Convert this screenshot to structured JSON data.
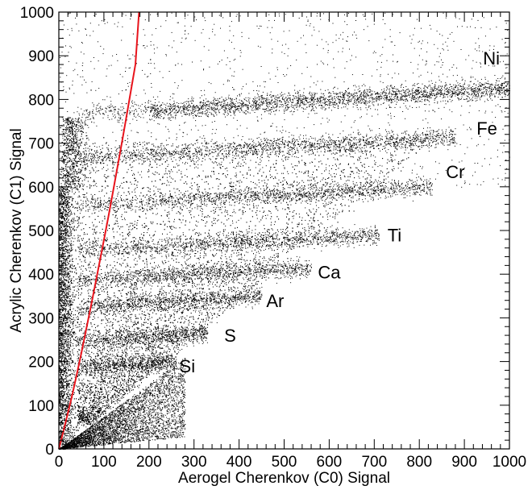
{
  "chart_data": {
    "type": "scatter",
    "title": "",
    "xlabel": "Aerogel Cherenkov (C0) Signal",
    "ylabel": "Acrylic Cherenkov (C1) Signal",
    "xlim": [
      0,
      1000
    ],
    "ylim": [
      0,
      1000
    ],
    "x_ticks": [
      0,
      100,
      200,
      300,
      400,
      500,
      600,
      700,
      800,
      900,
      1000
    ],
    "y_ticks": [
      0,
      100,
      200,
      300,
      400,
      500,
      600,
      700,
      800,
      900,
      1000
    ],
    "grid": false,
    "point_color": "#000000",
    "curve_color": "#e8141c",
    "curve": {
      "x": [
        0,
        10,
        20,
        30,
        40,
        50,
        60,
        70,
        80,
        90,
        100,
        110,
        120,
        130,
        140,
        150,
        160,
        170,
        178
      ],
      "y": [
        0,
        40,
        82,
        125,
        172,
        220,
        270,
        320,
        372,
        425,
        478,
        532,
        588,
        645,
        702,
        760,
        820,
        880,
        1000
      ]
    },
    "bands": [
      {
        "label": "Si",
        "x_end": 260,
        "y": 200,
        "label_x": 285,
        "label_y": 175
      },
      {
        "label": "S",
        "x_end": 330,
        "y": 265,
        "label_x": 380,
        "label_y": 245
      },
      {
        "label": "Ar",
        "x_end": 450,
        "y": 350,
        "label_x": 480,
        "label_y": 325
      },
      {
        "label": "Ca",
        "x_end": 560,
        "y": 415,
        "label_x": 600,
        "label_y": 390
      },
      {
        "label": "Ti",
        "x_end": 710,
        "y": 490,
        "label_x": 745,
        "label_y": 475
      },
      {
        "label": "Cr",
        "x_end": 830,
        "y": 600,
        "label_x": 880,
        "label_y": 620
      },
      {
        "label": "Fe",
        "x_end": 880,
        "y": 715,
        "label_x": 950,
        "label_y": 720
      },
      {
        "label": "Ni",
        "x_end": 1000,
        "y": 825,
        "label_x": 960,
        "label_y": 880
      }
    ]
  }
}
